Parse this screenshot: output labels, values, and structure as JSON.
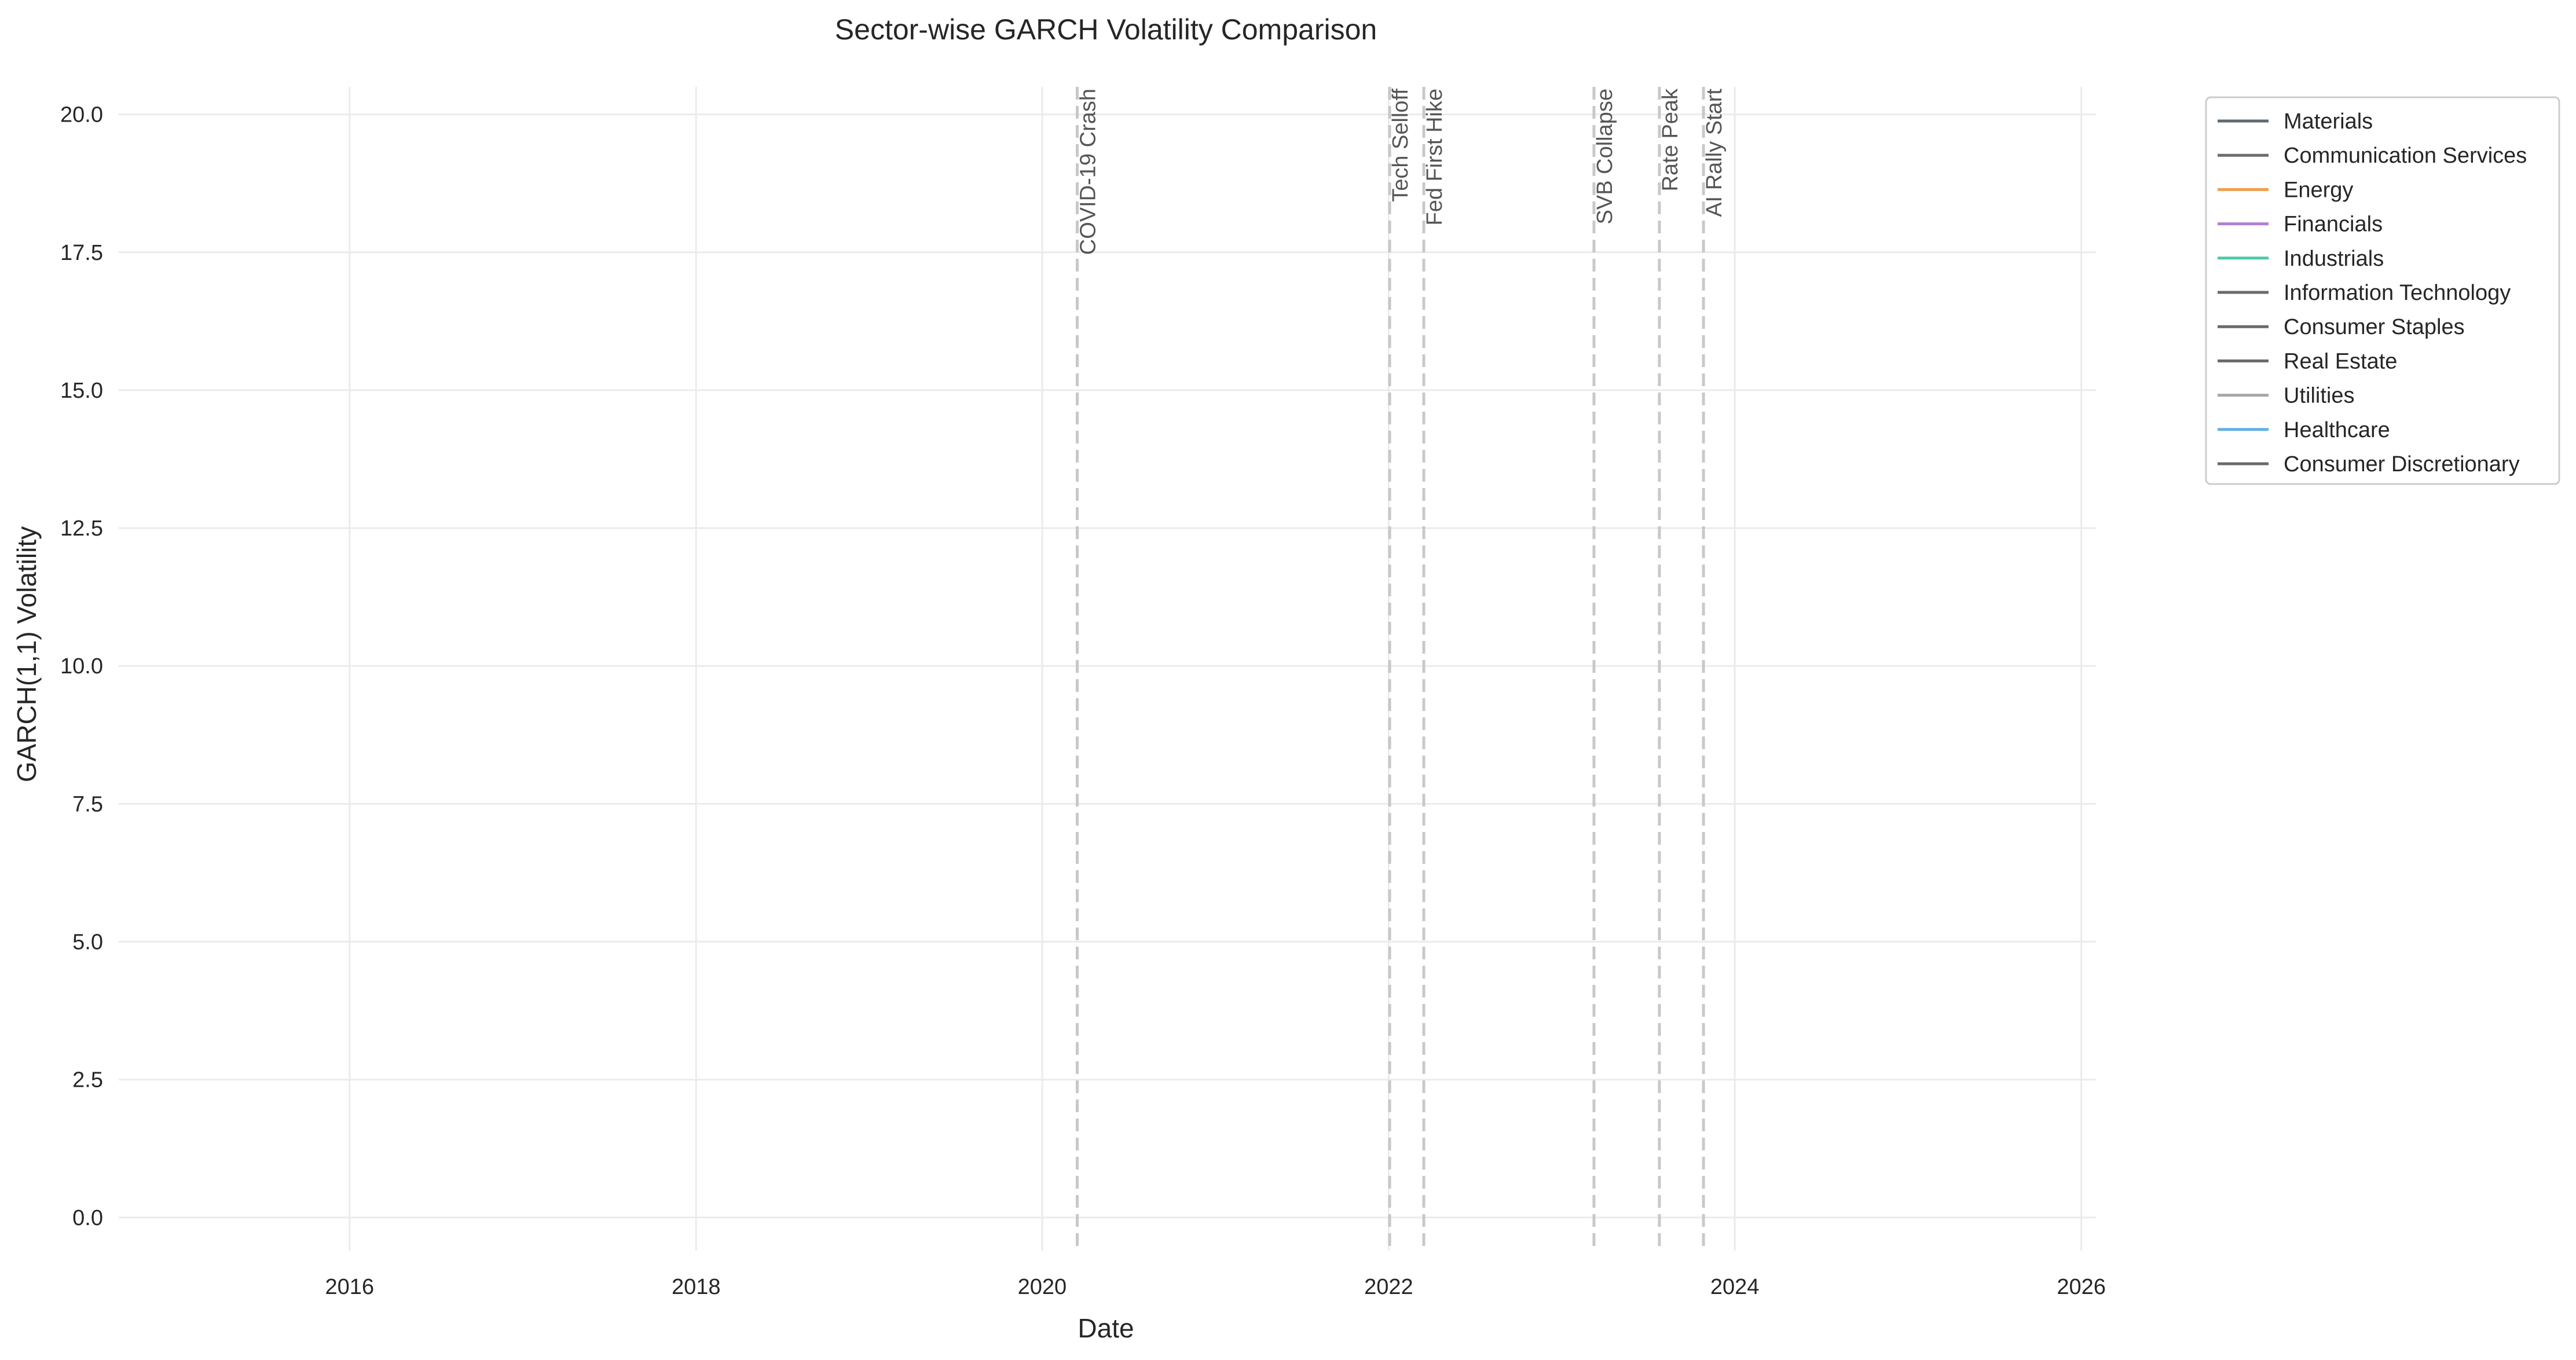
{
  "chart_data": {
    "type": "line",
    "title": "Sector-wise GARCH Volatility Comparison",
    "xlabel": "Date",
    "ylabel": "GARCH(1,1) Volatility",
    "xlim": [
      "2014-09-01",
      "2026-02-01"
    ],
    "ylim": [
      -0.6,
      20.5
    ],
    "x_ticks": [
      {
        "value": "2016-01-01",
        "label": "2016"
      },
      {
        "value": "2018-01-01",
        "label": "2018"
      },
      {
        "value": "2020-01-01",
        "label": "2020"
      },
      {
        "value": "2022-01-01",
        "label": "2022"
      },
      {
        "value": "2024-01-01",
        "label": "2024"
      },
      {
        "value": "2026-01-01",
        "label": "2026"
      }
    ],
    "y_ticks": [
      {
        "value": 0,
        "label": "0.0"
      },
      {
        "value": 2.5,
        "label": "2.5"
      },
      {
        "value": 5,
        "label": "5.0"
      },
      {
        "value": 7.5,
        "label": "7.5"
      },
      {
        "value": 10,
        "label": "10.0"
      },
      {
        "value": 12.5,
        "label": "12.5"
      },
      {
        "value": 15,
        "label": "15.0"
      },
      {
        "value": 17.5,
        "label": "17.5"
      },
      {
        "value": 20,
        "label": "20.0"
      }
    ],
    "grid": true,
    "legend_position": "outside-top-right",
    "events": [
      {
        "date": "2020-03-15",
        "label": "COVID-19 Crash"
      },
      {
        "date": "2022-01-03",
        "label": "Tech Selloff"
      },
      {
        "date": "2022-03-16",
        "label": "Fed First Hike"
      },
      {
        "date": "2023-03-10",
        "label": "SVB Collapse"
      },
      {
        "date": "2023-07-26",
        "label": "Rate Peak"
      },
      {
        "date": "2023-10-27",
        "label": "AI Rally Start"
      }
    ],
    "series": [
      {
        "name": "Materials",
        "color": "#5f6b73",
        "values": []
      },
      {
        "name": "Communication Services",
        "color": "#6e6e6e",
        "values": []
      },
      {
        "name": "Energy",
        "color": "#f39c4e",
        "values": []
      },
      {
        "name": "Financials",
        "color": "#b07fd6",
        "values": []
      },
      {
        "name": "Industrials",
        "color": "#4fc9a8",
        "values": []
      },
      {
        "name": "Information Technology",
        "color": "#6a6a6a",
        "values": []
      },
      {
        "name": "Consumer Staples",
        "color": "#6a6a6a",
        "values": []
      },
      {
        "name": "Real Estate",
        "color": "#6a6a6a",
        "values": []
      },
      {
        "name": "Utilities",
        "color": "#a8a8a8",
        "values": []
      },
      {
        "name": "Healthcare",
        "color": "#64b0e4",
        "values": []
      },
      {
        "name": "Consumer Discretionary",
        "color": "#6a6a6a",
        "values": []
      }
    ]
  }
}
